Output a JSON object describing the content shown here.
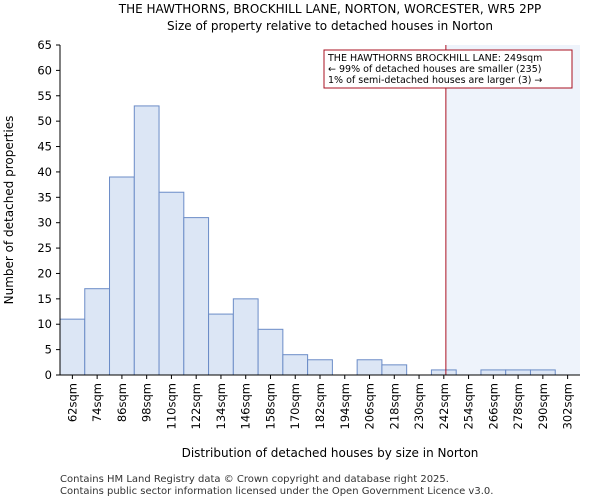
{
  "chart_data": {
    "type": "bar",
    "title": "THE HAWTHORNS, BROCKHILL LANE, NORTON, WORCESTER, WR5 2PP",
    "subtitle": "Size of property relative to detached houses in Norton",
    "xlabel": "Distribution of detached houses by size in Norton",
    "ylabel": "Number of detached properties",
    "categories": [
      "62sqm",
      "74sqm",
      "86sqm",
      "98sqm",
      "110sqm",
      "122sqm",
      "134sqm",
      "146sqm",
      "158sqm",
      "170sqm",
      "182sqm",
      "194sqm",
      "206sqm",
      "218sqm",
      "230sqm",
      "242sqm",
      "254sqm",
      "266sqm",
      "278sqm",
      "290sqm",
      "302sqm"
    ],
    "values": [
      11,
      17,
      39,
      53,
      36,
      31,
      12,
      15,
      9,
      4,
      3,
      0,
      3,
      2,
      0,
      1,
      0,
      1,
      1,
      1,
      0
    ],
    "ylim": [
      0,
      65
    ],
    "yticks": [
      0,
      5,
      10,
      15,
      20,
      25,
      30,
      35,
      40,
      45,
      50,
      55,
      60,
      65
    ],
    "bin_start": 62,
    "bin_width": 12,
    "marker_value": 249,
    "marker_color": "#aa1122",
    "bar_fill": "#dce6f5",
    "bar_stroke": "#6b8cc7",
    "highlight_fill": "#eef3fb",
    "annotation": {
      "line1": "THE HAWTHORNS BROCKHILL LANE: 249sqm",
      "line2": "← 99% of detached houses are smaller (235)",
      "line3": "1% of semi-detached houses are larger (3) →"
    }
  },
  "footer": {
    "line1": "Contains HM Land Registry data © Crown copyright and database right 2025.",
    "line2": "Contains public sector information licensed under the Open Government Licence v3.0."
  }
}
